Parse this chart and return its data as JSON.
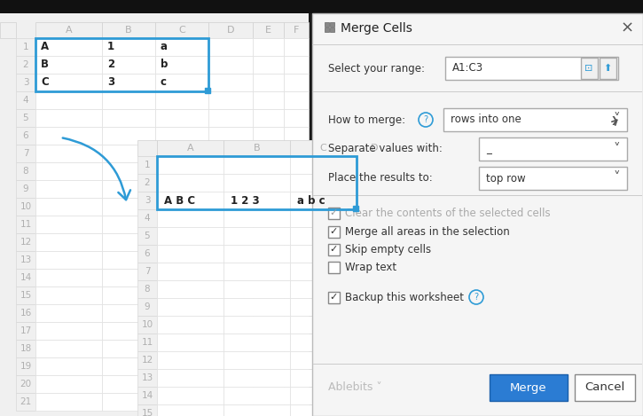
{
  "bg_color": "#1a1a1a",
  "dialog_bg": "#f5f5f5",
  "white": "#ffffff",
  "grid_light": "#e8e8e8",
  "grid_line": "#d8d8d8",
  "blue_border": "#2e9bd6",
  "blue_text": "#2e9bd6",
  "dialog_blue_btn": "#2b7cd3",
  "text_dark": "#333333",
  "text_gray": "#aaaaaa",
  "text_label": "#444444",
  "checkbox_grayed": "#aaaaaa",
  "sep_line": "#cccccc",
  "title_text": "Merge Cells",
  "range_value": "A1:C3",
  "merge_option": "rows into one",
  "separate_option": "_",
  "place_option": "top row",
  "cb_clear": "Clear the contents of the selected cells",
  "cb_merge": "Merge all areas in the selection",
  "cb_skip": "Skip empty cells",
  "cb_wrap": "Wrap text",
  "cb_backup": "Backup this worksheet",
  "btn_merge": "Merge",
  "btn_cancel": "Cancel",
  "top_data": [
    [
      "A",
      "1",
      "a"
    ],
    [
      "B",
      "2",
      "b"
    ],
    [
      "C",
      "3",
      "c"
    ]
  ],
  "bot_merged": [
    "A B C",
    "1 2 3",
    "a b c"
  ]
}
